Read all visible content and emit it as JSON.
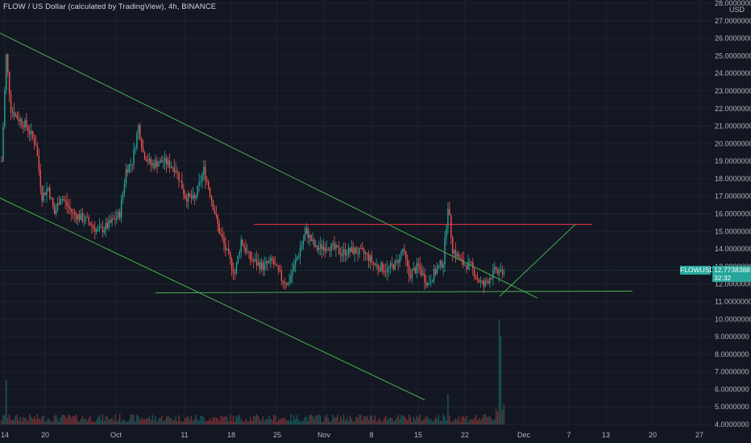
{
  "header": {
    "title": "FLOW / US Dollar (calculated by TradingView), 4h, BINANCE"
  },
  "price_axis": {
    "currency_label": "USD",
    "symbol_tag": "FLOWUSD",
    "last_price": "12.7738388",
    "countdown": "32:32"
  },
  "colors": {
    "background": "#131722",
    "up": "#26a69a",
    "down": "#ef5350",
    "trendline_green": "#4caf50",
    "resistance_red": "#f23645",
    "axis_text": "#b2b5be"
  },
  "chart_data": {
    "type": "candlestick",
    "title": "FLOW / US Dollar (calculated by TradingView), 4h, BINANCE",
    "ylabel": "USD",
    "ylim": [
      4,
      28
    ],
    "y_ticks": [
      "28.0000000",
      "27.0000000",
      "26.0000000",
      "25.0000000",
      "24.0000000",
      "23.0000000",
      "22.0000000",
      "21.0000000",
      "20.0000000",
      "19.0000000",
      "18.0000000",
      "17.0000000",
      "16.0000000",
      "15.0000000",
      "14.0000000",
      "13.0000000",
      "12.0000000",
      "11.0000000",
      "10.0000000",
      "9.0000000",
      "8.0000000",
      "7.0000000",
      "6.0000000",
      "5.0000000",
      "4.0000000"
    ],
    "x_ticks": [
      "14",
      "20",
      "Oct",
      "11",
      "18",
      "25",
      "Nov",
      "8",
      "15",
      "22",
      "Dec",
      "7",
      "13",
      "20",
      "27"
    ],
    "close_path": [
      {
        "t": 0,
        "c": 19.0
      },
      {
        "t": 3,
        "c": 25.0
      },
      {
        "t": 6,
        "c": 22.0
      },
      {
        "t": 10,
        "c": 21.5
      },
      {
        "t": 16,
        "c": 21.0
      },
      {
        "t": 22,
        "c": 20.0
      },
      {
        "t": 26,
        "c": 17.0
      },
      {
        "t": 30,
        "c": 17.5
      },
      {
        "t": 34,
        "c": 16.0
      },
      {
        "t": 38,
        "c": 17.0
      },
      {
        "t": 46,
        "c": 16.0
      },
      {
        "t": 55,
        "c": 15.6
      },
      {
        "t": 62,
        "c": 15.0
      },
      {
        "t": 68,
        "c": 15.3
      },
      {
        "t": 76,
        "c": 16.0
      },
      {
        "t": 80,
        "c": 18.5
      },
      {
        "t": 84,
        "c": 19.0
      },
      {
        "t": 88,
        "c": 21.0
      },
      {
        "t": 91,
        "c": 19.5
      },
      {
        "t": 96,
        "c": 18.8
      },
      {
        "t": 104,
        "c": 19.0
      },
      {
        "t": 112,
        "c": 18.6
      },
      {
        "t": 118,
        "c": 17.0
      },
      {
        "t": 124,
        "c": 16.8
      },
      {
        "t": 130,
        "c": 18.5
      },
      {
        "t": 134,
        "c": 17.2
      },
      {
        "t": 140,
        "c": 15.0
      },
      {
        "t": 146,
        "c": 13.5
      },
      {
        "t": 150,
        "c": 12.6
      },
      {
        "t": 154,
        "c": 14.5
      },
      {
        "t": 160,
        "c": 13.4
      },
      {
        "t": 168,
        "c": 13.0
      },
      {
        "t": 174,
        "c": 13.3
      },
      {
        "t": 180,
        "c": 12.3
      },
      {
        "t": 184,
        "c": 12.0
      },
      {
        "t": 190,
        "c": 13.5
      },
      {
        "t": 196,
        "c": 15.0
      },
      {
        "t": 202,
        "c": 14.0
      },
      {
        "t": 210,
        "c": 14.2
      },
      {
        "t": 218,
        "c": 13.8
      },
      {
        "t": 226,
        "c": 13.9
      },
      {
        "t": 234,
        "c": 13.7
      },
      {
        "t": 240,
        "c": 13.1
      },
      {
        "t": 248,
        "c": 12.8
      },
      {
        "t": 254,
        "c": 13.2
      },
      {
        "t": 258,
        "c": 14.0
      },
      {
        "t": 262,
        "c": 12.5
      },
      {
        "t": 268,
        "c": 13.0
      },
      {
        "t": 274,
        "c": 12.0
      },
      {
        "t": 278,
        "c": 12.6
      },
      {
        "t": 284,
        "c": 13.3
      },
      {
        "t": 287,
        "c": 16.5
      },
      {
        "t": 290,
        "c": 14.0
      },
      {
        "t": 296,
        "c": 13.2
      },
      {
        "t": 302,
        "c": 13.0
      },
      {
        "t": 306,
        "c": 12.3
      },
      {
        "t": 310,
        "c": 11.9
      },
      {
        "t": 314,
        "c": 12.4
      },
      {
        "t": 318,
        "c": 12.8
      },
      {
        "t": 323,
        "c": 12.77
      }
    ]
  },
  "drawings": {
    "upper_trendline": {
      "from": [
        "Sep 14",
        26.3
      ],
      "to": [
        "Nov 29",
        11.2
      ]
    },
    "lower_trendline": {
      "from": [
        "Sep 14",
        16.9
      ],
      "to": [
        "Nov 20",
        5.4
      ]
    },
    "support_line": {
      "level": 11.5
    },
    "resistance_line": {
      "level": 15.4
    },
    "projection": {
      "from": [
        "Nov 28",
        11.3
      ],
      "to": [
        "Dec 9",
        15.4
      ]
    }
  }
}
